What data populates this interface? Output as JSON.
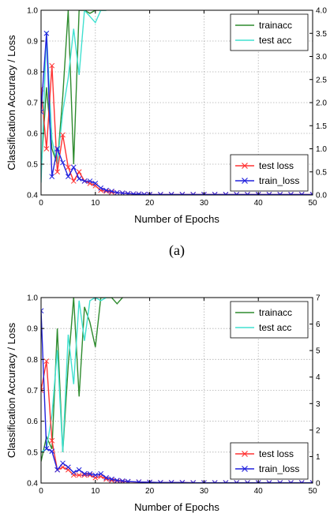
{
  "colors": {
    "trainacc": "#2e8b2e",
    "test_acc": "#40e0d0",
    "test_loss": "#ff3333",
    "train_loss": "#2222dd",
    "grid": "#b0b0b0"
  },
  "chart_data": [
    {
      "type": "line",
      "caption": "(a)",
      "xlabel": "Number of Epochs",
      "ylabel": "Classification Accuracy / Loss",
      "xlim": [
        0,
        50
      ],
      "ylim": [
        0.4,
        1.0
      ],
      "y2lim": [
        0,
        4
      ],
      "grid": true,
      "x_ticks": [
        "0",
        "10",
        "20",
        "30",
        "40",
        "50"
      ],
      "y_ticks": [
        "0.4",
        "0.5",
        "0.6",
        "0.7",
        "0.8",
        "0.9",
        "1.0"
      ],
      "y2_ticks": [
        "0.0",
        "0.5",
        "1.0",
        "1.5",
        "2.0",
        "2.5",
        "3.0",
        "3.5",
        "4.0"
      ],
      "legends": [
        {
          "position": "top-right",
          "entries": [
            "trainacc",
            "test acc"
          ]
        },
        {
          "position": "bottom-right",
          "entries": [
            "test loss",
            "train_loss"
          ]
        }
      ],
      "series": [
        {
          "name": "trainacc",
          "axis": "left",
          "marker": "none",
          "color_key": "trainacc",
          "x": [
            0,
            1,
            2,
            3,
            4,
            5,
            6,
            7,
            8,
            9,
            10,
            11,
            12
          ],
          "y": [
            0.48,
            0.75,
            0.55,
            0.5,
            0.72,
            1.0,
            0.5,
            1.0,
            1.0,
            0.99,
            1.0,
            1.0,
            1.0
          ]
        },
        {
          "name": "test acc",
          "axis": "left",
          "marker": "none",
          "color_key": "test_acc",
          "x": [
            0,
            1,
            2,
            3,
            4,
            5,
            6,
            7,
            8,
            9,
            10,
            11,
            12
          ],
          "y": [
            0.44,
            0.93,
            0.58,
            0.5,
            0.67,
            0.78,
            0.94,
            0.79,
            1.0,
            0.98,
            0.96,
            1.0,
            1.0
          ]
        },
        {
          "name": "test loss",
          "axis": "right",
          "marker": "x",
          "color_key": "test_loss",
          "x": [
            0,
            1,
            2,
            3,
            4,
            5,
            6,
            7,
            8,
            9,
            10,
            11,
            12,
            13,
            14,
            15,
            16,
            17,
            18,
            19,
            20,
            22,
            24,
            26,
            28,
            30,
            32,
            34,
            36,
            38,
            40,
            42,
            44,
            46,
            48,
            50
          ],
          "y": [
            2.3,
            1.0,
            2.8,
            0.5,
            1.3,
            0.6,
            0.3,
            0.5,
            0.3,
            0.25,
            0.2,
            0.1,
            0.08,
            0.06,
            0.05,
            0.04,
            0.03,
            0.02,
            0.02,
            0.01,
            0.01,
            0.01,
            0.01,
            0.01,
            0.01,
            0.01,
            0.01,
            0.01,
            0.01,
            0.01,
            0.01,
            0.01,
            0.01,
            0.01,
            0.01,
            0.01
          ]
        },
        {
          "name": "train_loss",
          "axis": "right",
          "marker": "x",
          "color_key": "train_loss",
          "x": [
            0,
            1,
            2,
            3,
            4,
            5,
            6,
            7,
            8,
            9,
            10,
            11,
            12,
            13,
            14,
            15,
            16,
            17,
            18,
            19,
            20,
            22,
            24,
            26,
            28,
            30,
            32,
            34,
            36,
            38,
            40,
            42,
            44,
            46,
            48,
            50
          ],
          "y": [
            1.8,
            3.5,
            0.4,
            1.0,
            0.7,
            0.4,
            0.6,
            0.35,
            0.3,
            0.3,
            0.25,
            0.15,
            0.1,
            0.08,
            0.05,
            0.04,
            0.03,
            0.02,
            0.02,
            0.01,
            0.01,
            0.01,
            0.01,
            0.01,
            0.01,
            0.01,
            0.01,
            0.01,
            0.01,
            0.01,
            0.01,
            0.01,
            0.01,
            0.01,
            0.01,
            0.01
          ]
        }
      ]
    },
    {
      "type": "line",
      "caption": "",
      "xlabel": "Number of Epochs",
      "ylabel": "Classification Accuracy / Loss",
      "xlim": [
        0,
        50
      ],
      "ylim": [
        0.4,
        1.0
      ],
      "y2lim": [
        0,
        7
      ],
      "grid": true,
      "x_ticks": [
        "0",
        "10",
        "20",
        "30",
        "40",
        "50"
      ],
      "y_ticks": [
        "0.4",
        "0.5",
        "0.6",
        "0.7",
        "0.8",
        "0.9",
        "1.0"
      ],
      "y2_ticks": [
        "0",
        "1",
        "2",
        "3",
        "4",
        "5",
        "6",
        "7"
      ],
      "legends": [
        {
          "position": "top-right",
          "entries": [
            "trainacc",
            "test acc"
          ]
        },
        {
          "position": "bottom-right",
          "entries": [
            "test loss",
            "train_loss"
          ]
        }
      ],
      "series": [
        {
          "name": "trainacc",
          "axis": "left",
          "marker": "none",
          "color_key": "trainacc",
          "x": [
            0,
            1,
            2,
            3,
            4,
            5,
            6,
            7,
            8,
            9,
            10,
            11,
            12,
            13,
            14,
            15
          ],
          "y": [
            0.47,
            0.55,
            0.51,
            0.9,
            0.5,
            0.78,
            1.0,
            0.68,
            0.97,
            0.92,
            0.84,
            1.0,
            1.0,
            1.0,
            0.98,
            1.0
          ]
        },
        {
          "name": "test acc",
          "axis": "left",
          "marker": "none",
          "color_key": "test_acc",
          "x": [
            0,
            1,
            2,
            3,
            4,
            5,
            6,
            7,
            8,
            9,
            10,
            11,
            12
          ],
          "y": [
            0.5,
            0.51,
            0.62,
            0.83,
            0.5,
            0.88,
            0.72,
            0.99,
            0.86,
            0.99,
            1.0,
            0.99,
            1.0
          ]
        },
        {
          "name": "test loss",
          "axis": "right",
          "marker": "x",
          "color_key": "test_loss",
          "x": [
            0,
            1,
            2,
            3,
            4,
            5,
            6,
            7,
            8,
            9,
            10,
            11,
            12,
            13,
            14,
            15,
            16,
            18,
            20,
            22,
            24,
            26,
            28,
            30,
            32,
            34,
            36,
            38,
            40,
            42,
            44,
            46,
            48,
            50
          ],
          "y": [
            3.5,
            4.6,
            1.6,
            0.5,
            0.6,
            0.5,
            0.3,
            0.3,
            0.3,
            0.3,
            0.2,
            0.25,
            0.15,
            0.1,
            0.08,
            0.06,
            0.05,
            0.04,
            0.03,
            0.02,
            0.02,
            0.02,
            0.01,
            0.01,
            0.01,
            0.01,
            0.01,
            0.01,
            0.01,
            0.01,
            0.01,
            0.01,
            0.01,
            0.01
          ]
        },
        {
          "name": "train_loss",
          "axis": "right",
          "marker": "x",
          "color_key": "train_loss",
          "x": [
            0,
            1,
            2,
            3,
            4,
            5,
            6,
            7,
            8,
            9,
            10,
            11,
            12,
            13,
            14,
            15,
            16,
            18,
            20,
            22,
            24,
            26,
            28,
            30,
            32,
            34,
            36,
            38,
            40,
            42,
            44,
            46,
            48,
            50
          ],
          "y": [
            6.5,
            1.3,
            1.2,
            0.5,
            0.75,
            0.6,
            0.4,
            0.5,
            0.35,
            0.35,
            0.3,
            0.35,
            0.2,
            0.15,
            0.1,
            0.08,
            0.06,
            0.04,
            0.03,
            0.02,
            0.02,
            0.02,
            0.01,
            0.01,
            0.01,
            0.01,
            0.01,
            0.01,
            0.01,
            0.01,
            0.01,
            0.01,
            0.01,
            0.01
          ]
        }
      ]
    }
  ]
}
